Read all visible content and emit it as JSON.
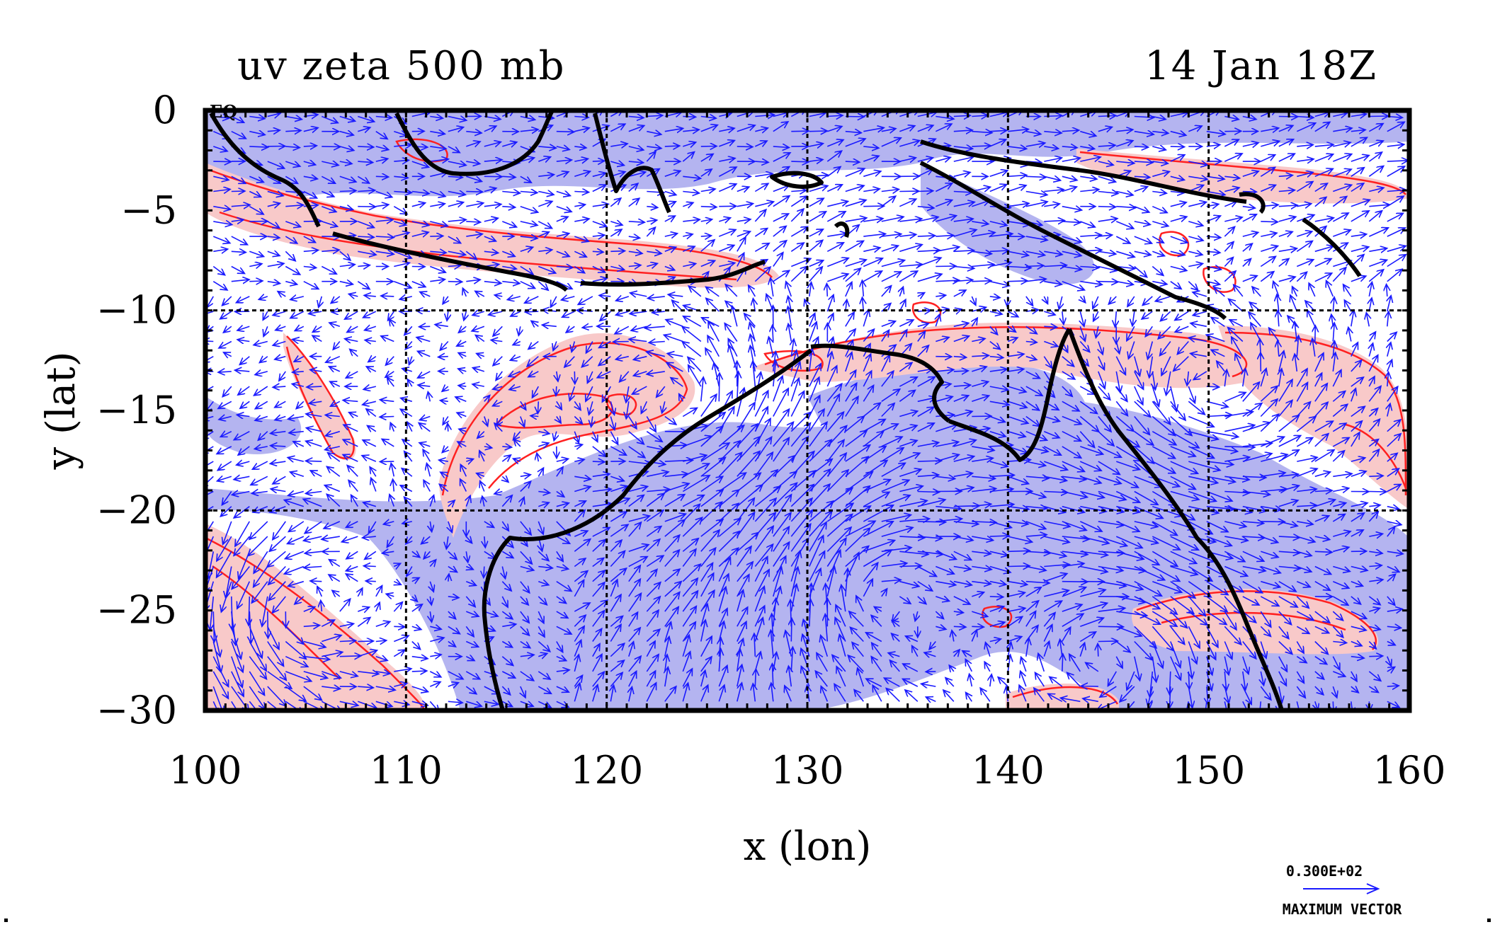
{
  "header": {
    "title_left": "uv zeta 500 mb",
    "title_right": "14 Jan 18Z",
    "equator_label": "EQ"
  },
  "chart_data": {
    "type": "map",
    "xlabel": "x (lon)",
    "ylabel": "y (lat)",
    "xlim": [
      100,
      160
    ],
    "ylim": [
      -30,
      0
    ],
    "xticks": [
      "100",
      "110",
      "120",
      "130",
      "140",
      "150",
      "160"
    ],
    "yticks": [
      "0",
      "−5",
      "−10",
      "−15",
      "−20",
      "−25",
      "−30"
    ],
    "grid_lon": [
      110,
      120,
      130,
      140,
      150
    ],
    "grid_lat": [
      -10,
      -20
    ],
    "grid": true,
    "layers": [
      {
        "name": "wind vectors (u,v)",
        "color": "#1a1aff"
      },
      {
        "name": "positive vorticity",
        "color": "#ff2020",
        "fill": "#f8c9c9"
      },
      {
        "name": "negative vorticity",
        "fill": "#b4b4f0"
      },
      {
        "name": "coastlines",
        "color": "#000000"
      }
    ],
    "vector_key": {
      "value": "0.300E+02",
      "label": "MAXIMUM VECTOR"
    }
  }
}
